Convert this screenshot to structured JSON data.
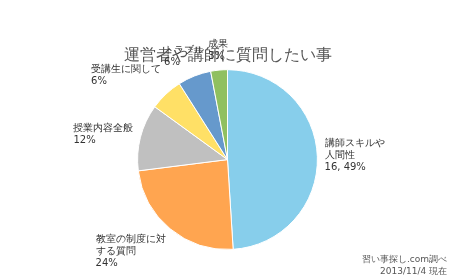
{
  "chart_data": {
    "type": "pie",
    "title": "運営者や講師に質問したい事",
    "categories": [
      "講師スキルや\n人間性",
      "教室の制度に対\nする質問",
      "授業内容全般",
      "受講生に関して",
      "トラブル",
      "成果"
    ],
    "values": [
      49,
      24,
      12,
      6,
      6,
      3
    ],
    "value_labels": [
      "16, 49%",
      "24%",
      "12%",
      "6%",
      "6%",
      "3%"
    ],
    "colors": [
      "#87CEEB",
      "#FFA550",
      "#C0C0C0",
      "#FFE066",
      "#6699CC",
      "#90C060"
    ],
    "data_labels": true,
    "annotations": [
      "習い事探し.com調べ",
      "2013/11/4 現在"
    ]
  }
}
